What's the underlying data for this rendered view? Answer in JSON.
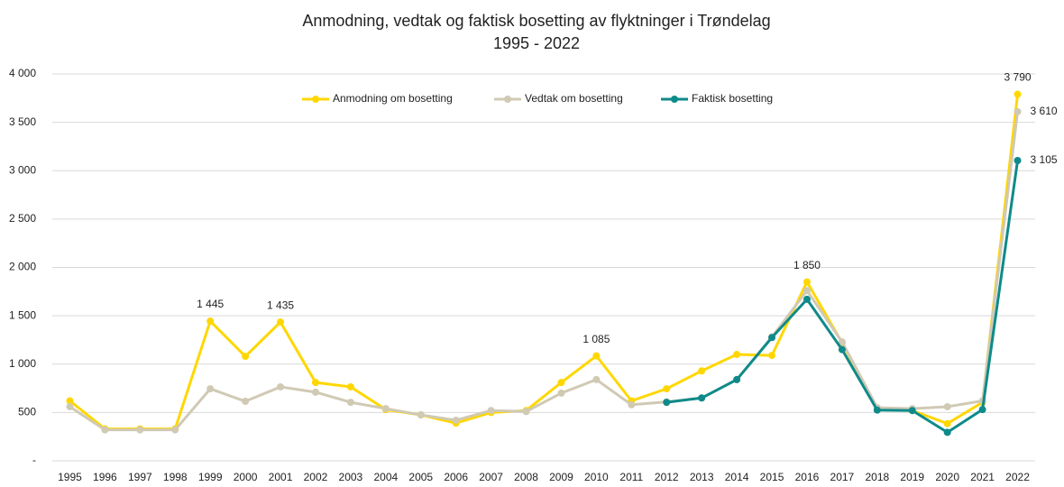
{
  "chart_data": {
    "type": "line",
    "title": "Anmodning, vedtak og faktisk bosetting av flyktninger i Trøndelag",
    "subtitle": "1995 - 2022",
    "categories": [
      "1995",
      "1996",
      "1997",
      "1998",
      "1999",
      "2000",
      "2001",
      "2002",
      "2003",
      "2004",
      "2005",
      "2006",
      "2007",
      "2008",
      "2009",
      "2010",
      "2011",
      "2012",
      "2013",
      "2014",
      "2015",
      "2016",
      "2017",
      "2018",
      "2019",
      "2020",
      "2021",
      "2022"
    ],
    "series": [
      {
        "name": "Anmodning om bosetting",
        "color": "#ffd700",
        "values": [
          620,
          330,
          330,
          330,
          1445,
          1080,
          1435,
          810,
          765,
          530,
          475,
          390,
          500,
          520,
          810,
          1085,
          620,
          745,
          930,
          1100,
          1090,
          1850,
          1220,
          540,
          520,
          385,
          605,
          3790
        ],
        "value_labels": [
          null,
          null,
          null,
          null,
          "1 445",
          null,
          "1 435",
          null,
          null,
          null,
          null,
          null,
          null,
          null,
          null,
          "1 085",
          null,
          null,
          null,
          null,
          null,
          "1 850",
          null,
          null,
          null,
          null,
          null,
          "3 790"
        ]
      },
      {
        "name": "Vedtak om bosetting",
        "color": "#d0c9b4",
        "values": [
          560,
          320,
          320,
          320,
          745,
          615,
          765,
          710,
          605,
          540,
          475,
          420,
          520,
          510,
          700,
          840,
          580,
          610,
          650,
          840,
          1280,
          1760,
          1230,
          550,
          540,
          560,
          620,
          3610
        ],
        "value_labels": [
          null,
          null,
          null,
          null,
          null,
          null,
          null,
          null,
          null,
          null,
          null,
          null,
          null,
          null,
          null,
          null,
          null,
          null,
          null,
          null,
          null,
          null,
          null,
          null,
          null,
          null,
          null,
          "3 610"
        ]
      },
      {
        "name": "Faktisk bosetting",
        "color": "#0f8a8a",
        "values": [
          null,
          null,
          null,
          null,
          null,
          null,
          null,
          null,
          null,
          null,
          null,
          null,
          null,
          null,
          null,
          null,
          null,
          605,
          650,
          840,
          1275,
          1670,
          1150,
          525,
          520,
          295,
          530,
          3105
        ],
        "value_labels": [
          null,
          null,
          null,
          null,
          null,
          null,
          null,
          null,
          null,
          null,
          null,
          null,
          null,
          null,
          null,
          null,
          null,
          null,
          null,
          null,
          null,
          null,
          null,
          null,
          null,
          null,
          null,
          "3 105"
        ]
      }
    ],
    "ylim": [
      0,
      4000
    ],
    "yticks": [
      {
        "value": 0,
        "label": "-"
      },
      500,
      {
        "value": 1000,
        "label": "1 000"
      },
      {
        "value": 1500,
        "label": "1 500"
      },
      {
        "value": 2000,
        "label": "2 000"
      },
      {
        "value": 2500,
        "label": "2 500"
      },
      {
        "value": 3000,
        "label": "3 000"
      },
      {
        "value": 3500,
        "label": "3 500"
      },
      {
        "value": 4000,
        "label": "4 000"
      }
    ],
    "grid": true,
    "legend": "top"
  }
}
